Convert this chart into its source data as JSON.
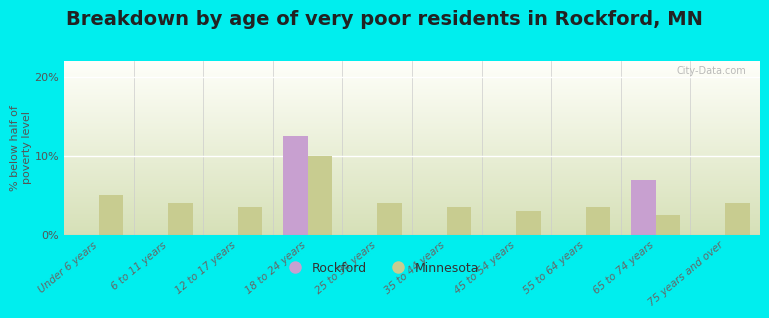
{
  "categories": [
    "Under 6 years",
    "6 to 11 years",
    "12 to 17 years",
    "18 to 24 years",
    "25 to 34 years",
    "35 to 44 years",
    "45 to 54 years",
    "55 to 64 years",
    "65 to 74 years",
    "75 years and over"
  ],
  "rockford": [
    0,
    0,
    0,
    12.5,
    0,
    0,
    0,
    0,
    7.0,
    0
  ],
  "minnesota": [
    5.0,
    4.0,
    3.5,
    10.0,
    4.0,
    3.5,
    3.0,
    3.5,
    2.5,
    4.0
  ],
  "rockford_color": "#c8a0d0",
  "minnesota_color": "#c8cc90",
  "title": "Breakdown by age of very poor residents in Rockford, MN",
  "ylabel": "% below half of\npoverty level",
  "ylim": [
    0,
    22
  ],
  "yticks": [
    0,
    10,
    20
  ],
  "ytick_labels": [
    "0%",
    "10%",
    "20%"
  ],
  "background_color": "#00eeee",
  "bar_width": 0.35,
  "title_fontsize": 14,
  "axis_fontsize": 8,
  "tick_fontsize": 8,
  "watermark": "City-Data.com"
}
